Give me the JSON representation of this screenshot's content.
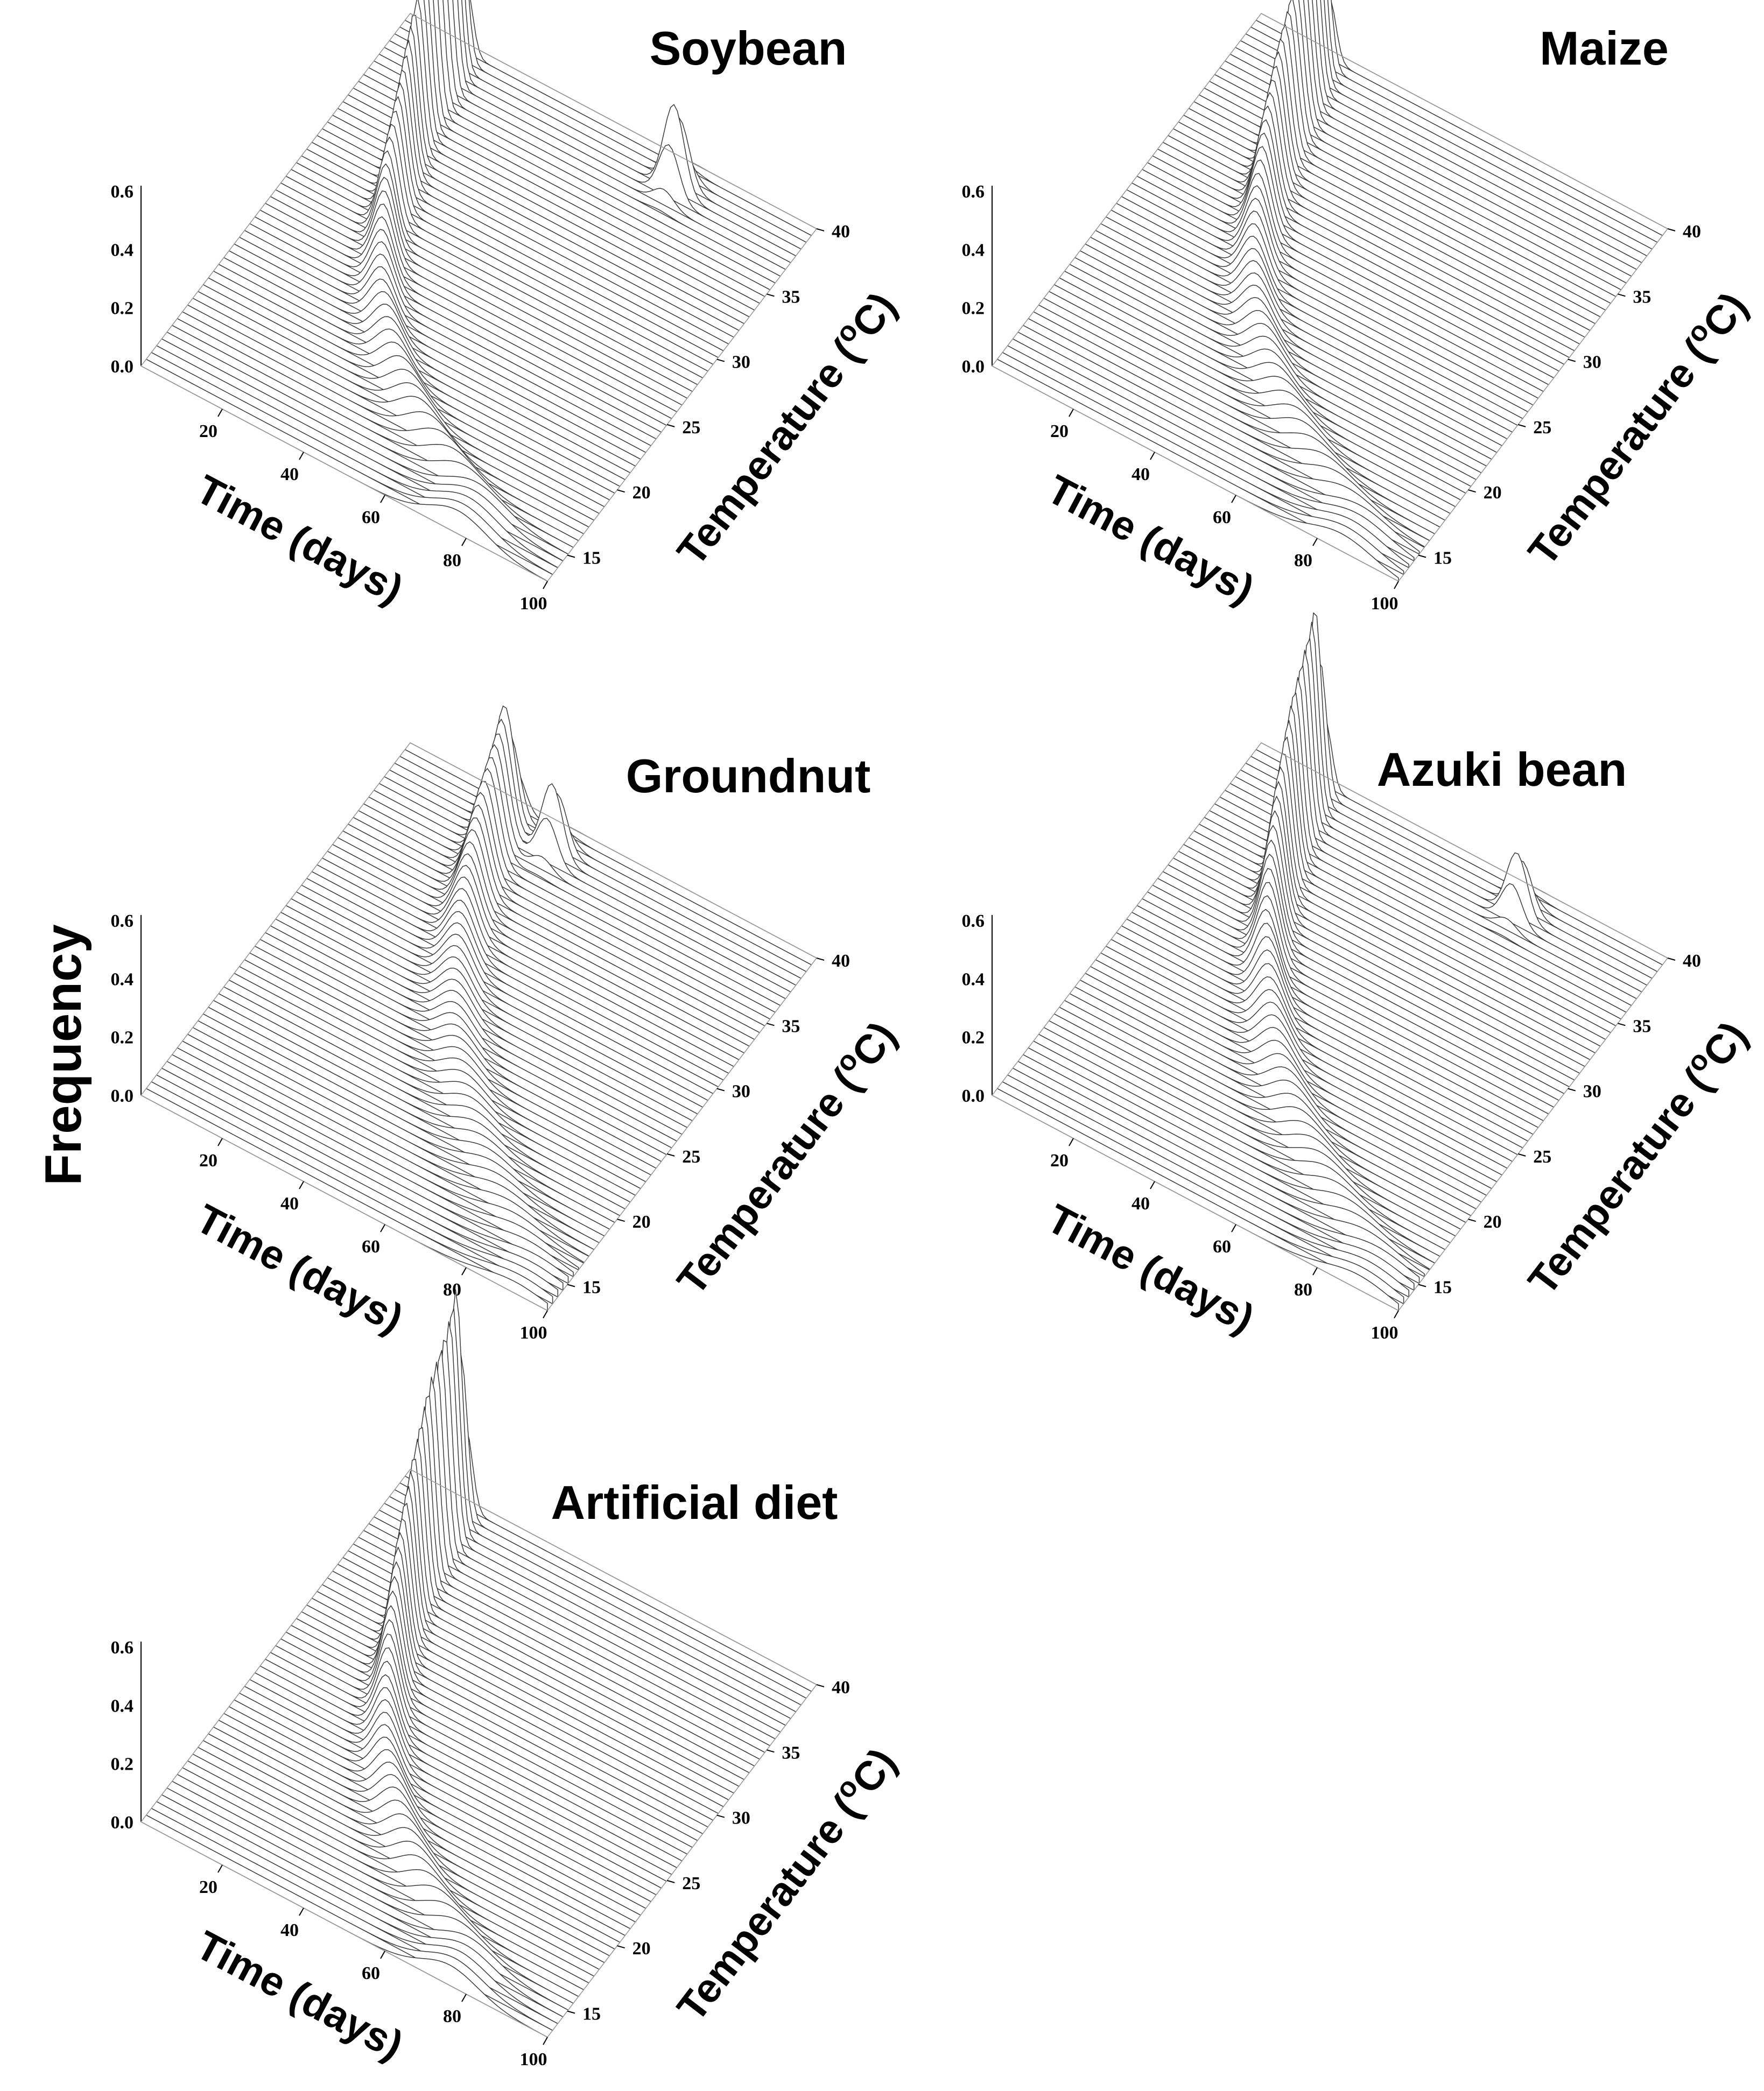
{
  "figure": {
    "y_axis_label": "Frequency"
  },
  "chart_data": [
    {
      "type": "surface",
      "title": "Soybean",
      "xlabel": "Time (days)",
      "ylabel": "Temperature (°C)",
      "zlabel": "Frequency",
      "temperature_superscript": "o",
      "xlim": [
        0,
        100
      ],
      "ylim": [
        13,
        40
      ],
      "zlim": [
        0,
        0.6
      ],
      "x_ticks": [
        20,
        40,
        60,
        80,
        100
      ],
      "y_ticks": [
        15,
        20,
        25,
        30,
        35,
        40
      ],
      "z_ticks": [
        "0.0",
        "0.2",
        "0.4",
        "0.6"
      ],
      "ridge": [
        {
          "temperature": 15,
          "peak_day": 78,
          "frequency": 0.08
        },
        {
          "temperature": 17.5,
          "peak_day": 58,
          "frequency": 0.1
        },
        {
          "temperature": 20,
          "peak_day": 45,
          "frequency": 0.12
        },
        {
          "temperature": 22.5,
          "peak_day": 36,
          "frequency": 0.15
        },
        {
          "temperature": 25,
          "peak_day": 30,
          "frequency": 0.2
        },
        {
          "temperature": 27.5,
          "peak_day": 25,
          "frequency": 0.27
        },
        {
          "temperature": 30,
          "peak_day": 22,
          "frequency": 0.36
        },
        {
          "temperature": 32.5,
          "peak_day": 19,
          "frequency": 0.46
        },
        {
          "temperature": 35,
          "peak_day": 17,
          "frequency": 0.58
        },
        {
          "temperature": 37.5,
          "peak_day": 16,
          "frequency": 0.66
        },
        {
          "temperature": 38.5,
          "peak_day": 15,
          "frequency": 0.7
        }
      ],
      "secondary_peaks": [
        {
          "temperature": 38,
          "peak_day": 70,
          "frequency": 0.3
        }
      ]
    },
    {
      "type": "surface",
      "title": "Maize",
      "xlabel": "Time (days)",
      "ylabel": "Temperature (°C)",
      "zlabel": "Frequency",
      "temperature_superscript": "o",
      "xlim": [
        0,
        100
      ],
      "ylim": [
        13,
        40
      ],
      "zlim": [
        0,
        0.6
      ],
      "x_ticks": [
        20,
        40,
        60,
        80,
        100
      ],
      "y_ticks": [
        15,
        20,
        25,
        30,
        35,
        40
      ],
      "z_ticks": [
        "0.0",
        "0.2",
        "0.4",
        "0.6"
      ],
      "ridge": [
        {
          "temperature": 15,
          "peak_day": 86,
          "frequency": 0.06
        },
        {
          "temperature": 17.5,
          "peak_day": 66,
          "frequency": 0.08
        },
        {
          "temperature": 20,
          "peak_day": 52,
          "frequency": 0.1
        },
        {
          "temperature": 22.5,
          "peak_day": 42,
          "frequency": 0.13
        },
        {
          "temperature": 25,
          "peak_day": 35,
          "frequency": 0.17
        },
        {
          "temperature": 27.5,
          "peak_day": 30,
          "frequency": 0.23
        },
        {
          "temperature": 30,
          "peak_day": 26,
          "frequency": 0.31
        },
        {
          "temperature": 32.5,
          "peak_day": 23,
          "frequency": 0.4
        },
        {
          "temperature": 35,
          "peak_day": 21,
          "frequency": 0.5
        },
        {
          "temperature": 37.5,
          "peak_day": 19,
          "frequency": 0.58
        },
        {
          "temperature": 38.5,
          "peak_day": 18,
          "frequency": 0.62
        }
      ],
      "secondary_peaks": []
    },
    {
      "type": "surface",
      "title": "Groundnut",
      "xlabel": "Time (days)",
      "ylabel": "Temperature (°C)",
      "zlabel": "Frequency",
      "temperature_superscript": "o",
      "xlim": [
        0,
        100
      ],
      "ylim": [
        13,
        40
      ],
      "zlim": [
        0,
        0.6
      ],
      "x_ticks": [
        20,
        40,
        60,
        80,
        100
      ],
      "y_ticks": [
        15,
        20,
        25,
        30,
        35,
        40
      ],
      "z_ticks": [
        "0.0",
        "0.2",
        "0.4",
        "0.6"
      ],
      "ridge": [
        {
          "temperature": 15,
          "peak_day": 92,
          "frequency": 0.04
        },
        {
          "temperature": 17.5,
          "peak_day": 78,
          "frequency": 0.05
        },
        {
          "temperature": 20,
          "peak_day": 66,
          "frequency": 0.06
        },
        {
          "temperature": 22.5,
          "peak_day": 56,
          "frequency": 0.08
        },
        {
          "temperature": 25,
          "peak_day": 48,
          "frequency": 0.1
        },
        {
          "temperature": 27.5,
          "peak_day": 42,
          "frequency": 0.13
        },
        {
          "temperature": 30,
          "peak_day": 37,
          "frequency": 0.17
        },
        {
          "temperature": 32.5,
          "peak_day": 33,
          "frequency": 0.22
        },
        {
          "temperature": 35,
          "peak_day": 30,
          "frequency": 0.29
        },
        {
          "temperature": 37.5,
          "peak_day": 28,
          "frequency": 0.36
        },
        {
          "temperature": 38.5,
          "peak_day": 27,
          "frequency": 0.4
        }
      ],
      "secondary_peaks": [
        {
          "temperature": 38,
          "peak_day": 40,
          "frequency": 0.25
        }
      ]
    },
    {
      "type": "surface",
      "title": "Azuki bean",
      "xlabel": "Time (days)",
      "ylabel": "Temperature (°C)",
      "zlabel": "Frequency",
      "temperature_superscript": "o",
      "xlim": [
        0,
        100
      ],
      "ylim": [
        13,
        40
      ],
      "zlim": [
        0,
        0.6
      ],
      "x_ticks": [
        20,
        40,
        60,
        80,
        100
      ],
      "y_ticks": [
        15,
        20,
        25,
        30,
        35,
        40
      ],
      "z_ticks": [
        "0.0",
        "0.2",
        "0.4",
        "0.6"
      ],
      "ridge": [
        {
          "temperature": 15,
          "peak_day": 90,
          "frequency": 0.05
        },
        {
          "temperature": 17.5,
          "peak_day": 72,
          "frequency": 0.07
        },
        {
          "temperature": 20,
          "peak_day": 58,
          "frequency": 0.09
        },
        {
          "temperature": 22.5,
          "peak_day": 47,
          "frequency": 0.12
        },
        {
          "temperature": 25,
          "peak_day": 39,
          "frequency": 0.16
        },
        {
          "temperature": 27.5,
          "peak_day": 32,
          "frequency": 0.22
        },
        {
          "temperature": 30,
          "peak_day": 27,
          "frequency": 0.3
        },
        {
          "temperature": 32.5,
          "peak_day": 23,
          "frequency": 0.4
        },
        {
          "temperature": 35,
          "peak_day": 20,
          "frequency": 0.52
        },
        {
          "temperature": 37.5,
          "peak_day": 18,
          "frequency": 0.62
        },
        {
          "temperature": 38.5,
          "peak_day": 17,
          "frequency": 0.66
        }
      ],
      "secondary_peaks": [
        {
          "temperature": 38,
          "peak_day": 68,
          "frequency": 0.22
        }
      ]
    },
    {
      "type": "surface",
      "title": "Artificial diet",
      "xlabel": "Time (days)",
      "ylabel": "Temperature (°C)",
      "zlabel": "Frequency",
      "temperature_superscript": "o",
      "xlim": [
        0,
        100
      ],
      "ylim": [
        13,
        40
      ],
      "zlim": [
        0,
        0.6
      ],
      "x_ticks": [
        20,
        40,
        60,
        80,
        100
      ],
      "y_ticks": [
        15,
        20,
        25,
        30,
        35,
        40
      ],
      "z_ticks": [
        "0.0",
        "0.2",
        "0.4",
        "0.6"
      ],
      "ridge": [
        {
          "temperature": 15,
          "peak_day": 76,
          "frequency": 0.07
        },
        {
          "temperature": 17.5,
          "peak_day": 58,
          "frequency": 0.09
        },
        {
          "temperature": 20,
          "peak_day": 46,
          "frequency": 0.12
        },
        {
          "temperature": 22.5,
          "peak_day": 37,
          "frequency": 0.15
        },
        {
          "temperature": 25,
          "peak_day": 31,
          "frequency": 0.2
        },
        {
          "temperature": 27.5,
          "peak_day": 26,
          "frequency": 0.28
        },
        {
          "temperature": 30,
          "peak_day": 22,
          "frequency": 0.38
        },
        {
          "temperature": 32.5,
          "peak_day": 19,
          "frequency": 0.5
        },
        {
          "temperature": 35,
          "peak_day": 17,
          "frequency": 0.64
        },
        {
          "temperature": 37.5,
          "peak_day": 16,
          "frequency": 0.75
        },
        {
          "temperature": 38.5,
          "peak_day": 15,
          "frequency": 0.8
        }
      ],
      "secondary_peaks": []
    }
  ]
}
